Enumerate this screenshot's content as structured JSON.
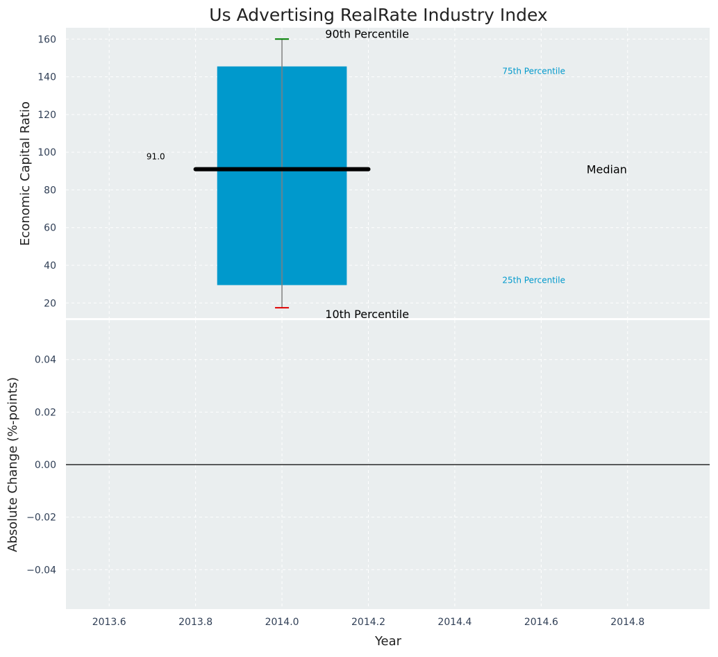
{
  "colors": {
    "background": "#ffffff",
    "plot_bg": "#eaeeef",
    "grid": "#ffffff",
    "box_fill": "#0099cc",
    "median": "#000000",
    "whisker_line": "#808080",
    "p90_cap": "#008000",
    "p10_cap": "#e00000",
    "p75_label": "#0099cc",
    "p25_label": "#0099cc",
    "tick_text": "#2f3e55",
    "text": "#222222",
    "zero_line": "#000000"
  },
  "chart_data": [
    {
      "type": "box",
      "title": "Us Advertising RealRate Industry Index",
      "ylabel": "Economic Capital Ratio",
      "ylim": [
        12,
        166
      ],
      "yticks": [
        20,
        40,
        60,
        80,
        100,
        120,
        140,
        160
      ],
      "grid": true,
      "x": 2014.0,
      "box_x_range": [
        2013.85,
        2014.15
      ],
      "median_x_range": [
        2013.8,
        2014.2
      ],
      "p10": 17.5,
      "p25": 29.5,
      "median": 91.0,
      "p75": 145.5,
      "p90": 160.0,
      "median_label": "91.0",
      "annotations": {
        "p90": "90th Percentile",
        "p75": "75th Percentile",
        "median": "Median",
        "p25": "25th Percentile",
        "p10": "10th Percentile"
      }
    },
    {
      "type": "line",
      "ylabel": "Absolute Change (%-points)",
      "xlabel": "Year",
      "ylim": [
        -0.055,
        0.055
      ],
      "yticks": [
        0.04,
        0.02,
        0.0,
        -0.02,
        -0.04
      ],
      "ytick_labels": [
        "0.04",
        "0.02",
        "0.00",
        "−0.02",
        "−0.04"
      ],
      "xlim": [
        2013.5,
        2014.99
      ],
      "xticks": [
        2013.6,
        2013.8,
        2014.0,
        2014.2,
        2014.4,
        2014.6,
        2014.8
      ],
      "xtick_labels": [
        "2013.6",
        "2013.8",
        "2014.0",
        "2014.2",
        "2014.4",
        "2014.6",
        "2014.8"
      ],
      "reference_line_y": 0.0,
      "grid": true
    }
  ]
}
